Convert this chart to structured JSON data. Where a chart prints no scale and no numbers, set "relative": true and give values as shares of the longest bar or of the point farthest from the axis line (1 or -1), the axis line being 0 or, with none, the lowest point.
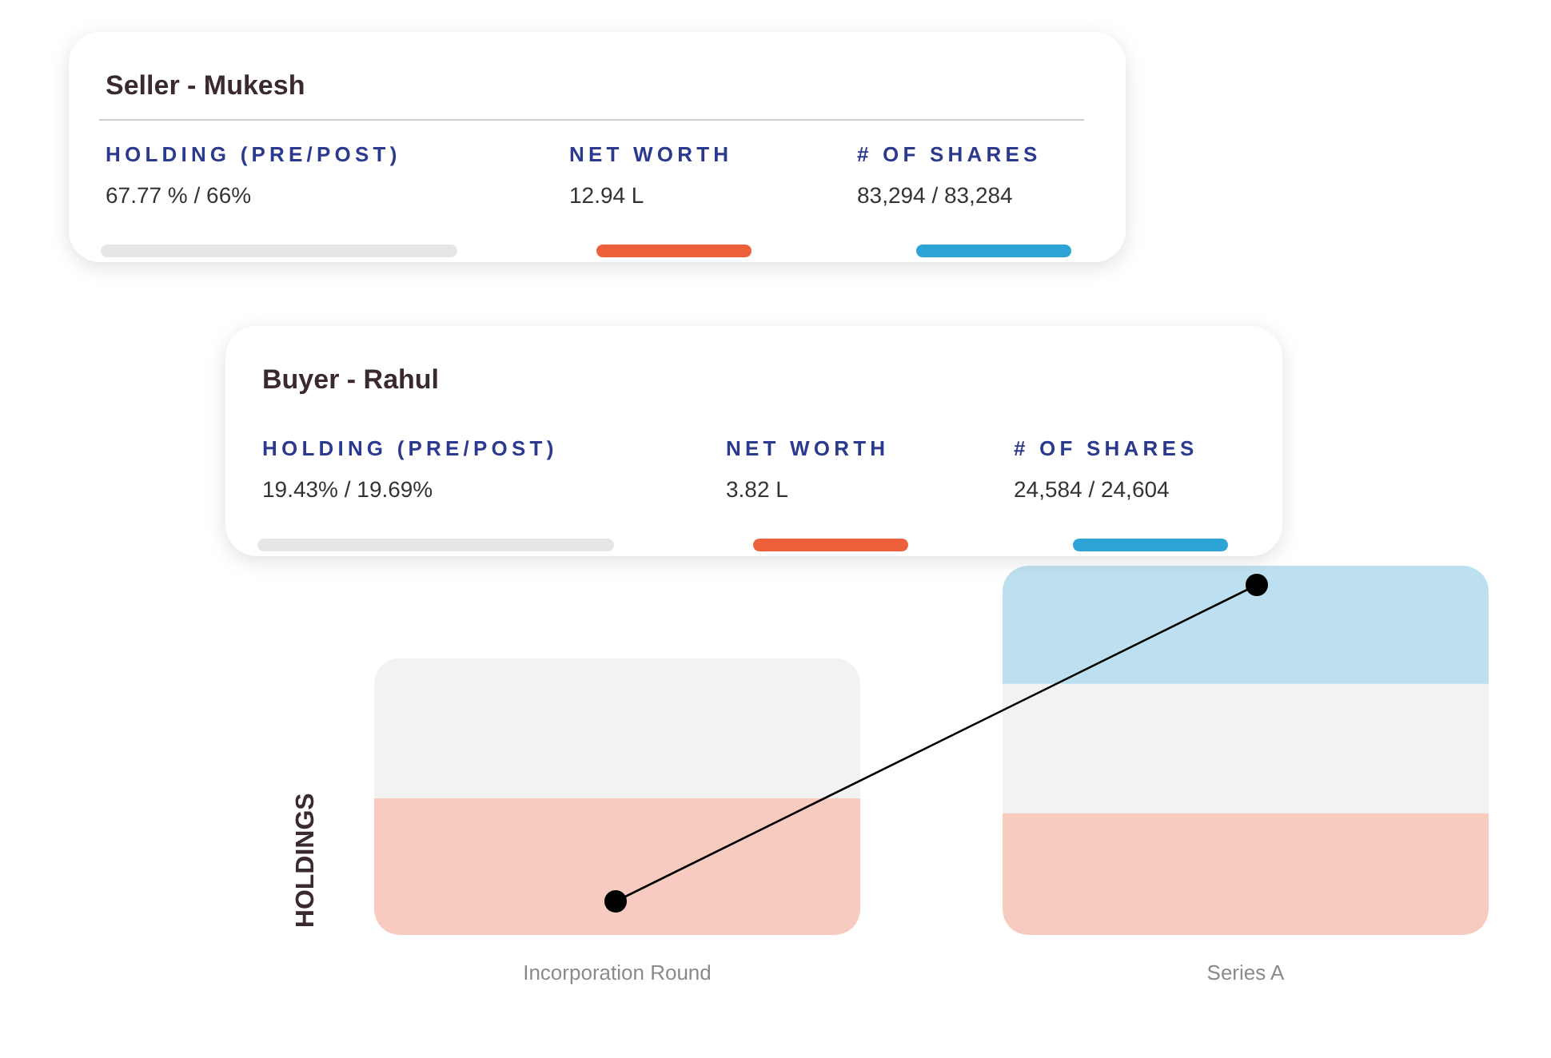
{
  "chart_data": [
    {
      "type": "other",
      "title": "Seller - Mukesh",
      "annotations": [
        "HOLDING (PRE/POST)",
        "67.77 % / 66%",
        "NET WORTH",
        "12.94 L",
        "# OF SHARES",
        "83,294 / 83,284"
      ]
    },
    {
      "type": "other",
      "title": "Buyer - Rahul",
      "annotations": [
        "HOLDING (PRE/POST)",
        "19.43% / 19.69%",
        "NET WORTH",
        "3.82 L",
        "# OF SHARES",
        "24,584 / 24,604"
      ]
    },
    {
      "type": "bar",
      "stacked": true,
      "relative": true,
      "ylabel": "HOLDINGS",
      "categories": [
        "Incorporation Round",
        "Series A"
      ],
      "series": [
        {
          "color": "#f7cbbf",
          "values": [
            0.37,
            0.33
          ]
        },
        {
          "color": "#f2f2f2",
          "values": [
            0.38,
            0.35
          ]
        },
        {
          "color": "#bde0f0",
          "values": [
            null,
            0.32
          ]
        }
      ]
    }
  ]
}
